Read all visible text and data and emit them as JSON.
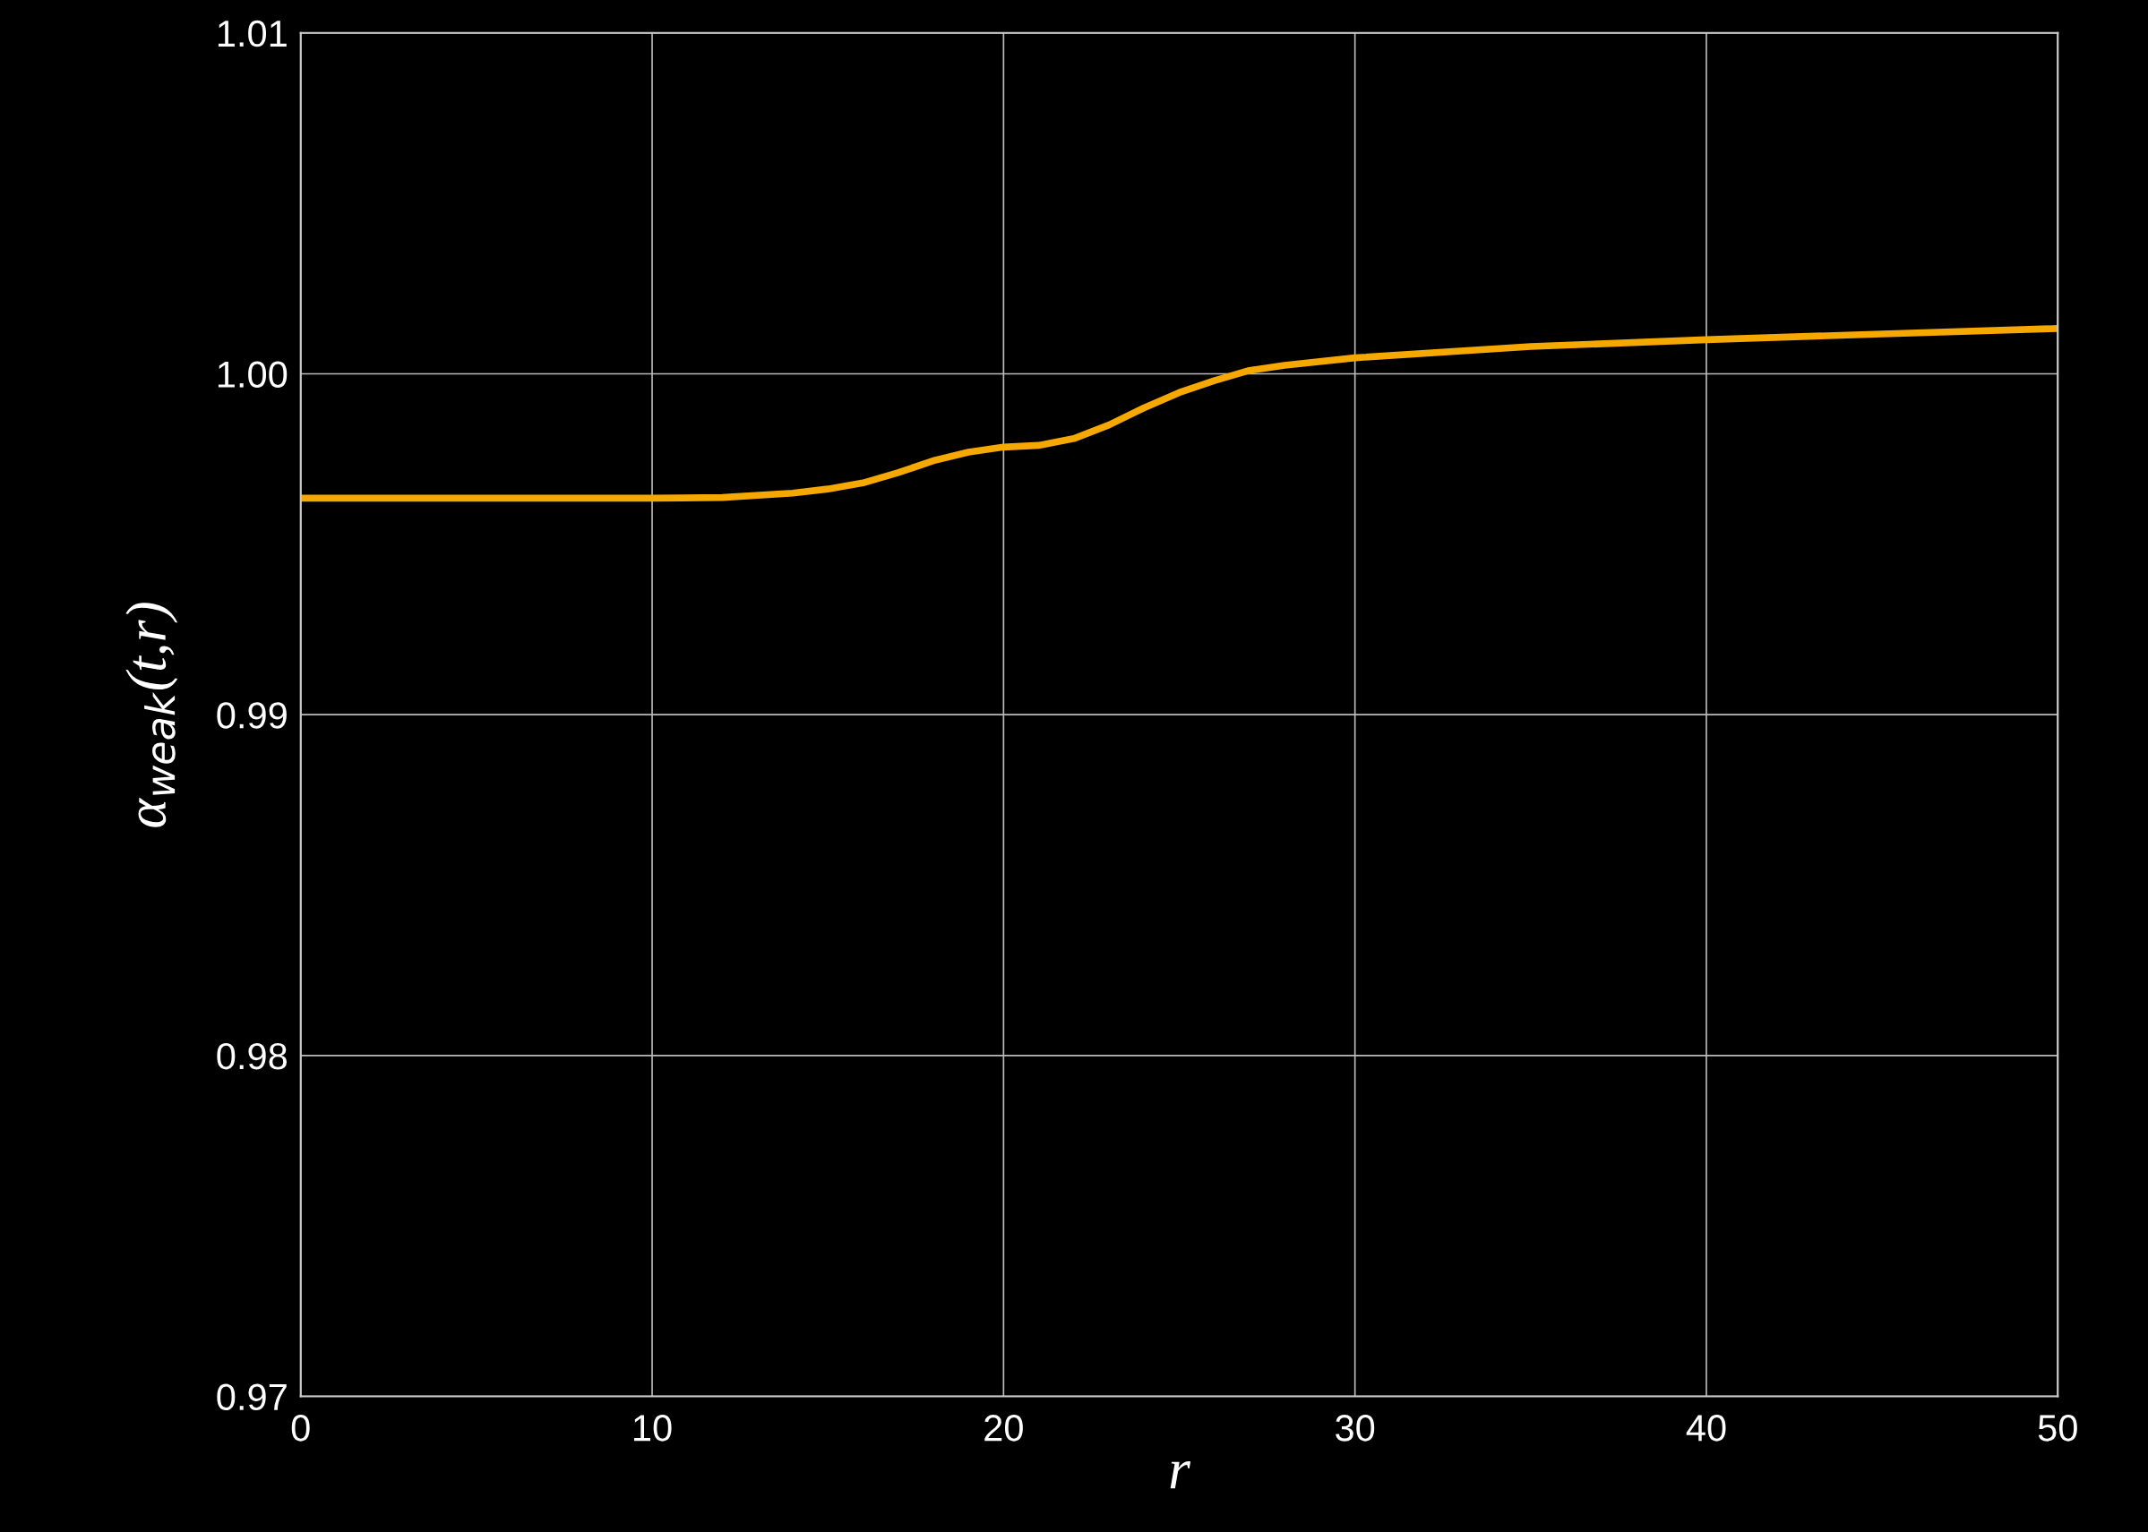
{
  "chart_data": {
    "type": "line",
    "xlabel": "r",
    "ylabel": "α$_{weak}$(t,r)",
    "x": [
      0,
      5,
      10,
      12,
      14,
      15,
      16,
      17,
      18,
      19,
      20,
      21,
      22,
      23,
      24,
      25,
      26,
      27,
      28,
      30,
      35,
      40,
      45,
      50
    ],
    "series": [
      {
        "color": "#f5a800",
        "values": [
          0.99635,
          0.99635,
          0.99635,
          0.99637,
          0.9965,
          0.99662,
          0.9968,
          0.9971,
          0.99745,
          0.9977,
          0.99785,
          0.9979,
          0.9981,
          0.9985,
          0.999,
          0.99945,
          0.9998,
          1.0001,
          1.00025,
          1.00047,
          1.0008,
          1.001,
          1.00117,
          1.00133
        ]
      }
    ],
    "xlim": [
      0,
      50
    ],
    "xticks": [
      0,
      10,
      20,
      30,
      40,
      50
    ],
    "ylim": [
      0.97,
      1.01
    ],
    "yticks": [
      0.97,
      0.98,
      0.99,
      {
        "value": 1.0,
        "label": "1.00"
      },
      1.01
    ],
    "grid": true,
    "marker": "none",
    "line_style": "solid"
  }
}
